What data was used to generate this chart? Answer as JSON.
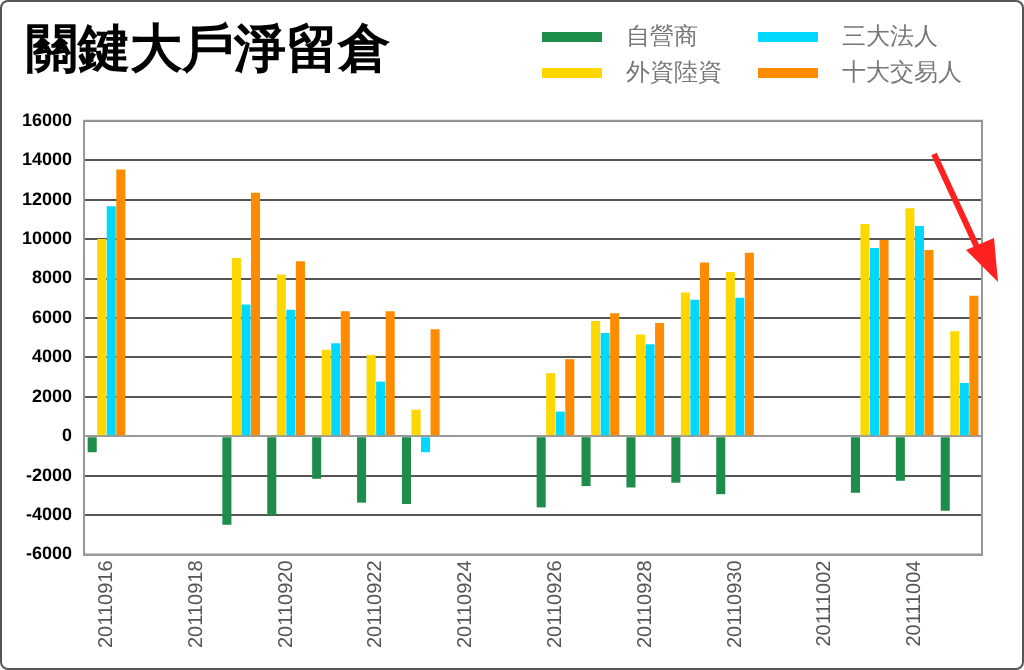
{
  "chart_data": {
    "type": "bar",
    "title": "關鍵大戶淨留倉",
    "categories": [
      "20110916",
      null,
      "20110918",
      null,
      "20110920",
      null,
      "20110922",
      null,
      "20110924",
      null,
      "20110926",
      null,
      "20110928",
      null,
      "20110930",
      null,
      "20111002",
      null,
      "20111004",
      null
    ],
    "series": [
      {
        "name": "自營商",
        "color": "#1e8c4a",
        "values": [
          -810,
          null,
          null,
          -4490,
          -4010,
          -2160,
          -3370,
          -3440,
          null,
          null,
          -3610,
          -2530,
          -2600,
          -2360,
          -2940,
          null,
          null,
          -2870,
          -2260,
          -3780
        ]
      },
      {
        "name": "外資陸資",
        "color": "#ffd700",
        "values": [
          10000,
          null,
          null,
          9040,
          8200,
          4390,
          4120,
          1350,
          null,
          null,
          3200,
          5840,
          5160,
          7290,
          8330,
          null,
          null,
          10760,
          11570,
          5330
        ]
      },
      {
        "name": "三大法人",
        "color": "#00d8ff",
        "values": [
          11670,
          null,
          null,
          6680,
          6410,
          4720,
          2770,
          -810,
          null,
          null,
          1250,
          5230,
          4660,
          6920,
          7020,
          null,
          null,
          9550,
          10660,
          2700
        ]
      },
      {
        "name": "十大交易人",
        "color": "#ff8c00",
        "values": [
          13530,
          null,
          null,
          12350,
          8870,
          6340,
          6340,
          5430,
          null,
          null,
          3910,
          6240,
          5740,
          8810,
          9310,
          null,
          null,
          9950,
          9450,
          7120
        ]
      }
    ],
    "ylim": [
      -6000,
      16000
    ],
    "yticks": [
      -6000,
      -4000,
      -2000,
      0,
      2000,
      4000,
      6000,
      8000,
      10000,
      12000,
      14000,
      16000
    ],
    "grid": "y",
    "legend": "top right"
  }
}
